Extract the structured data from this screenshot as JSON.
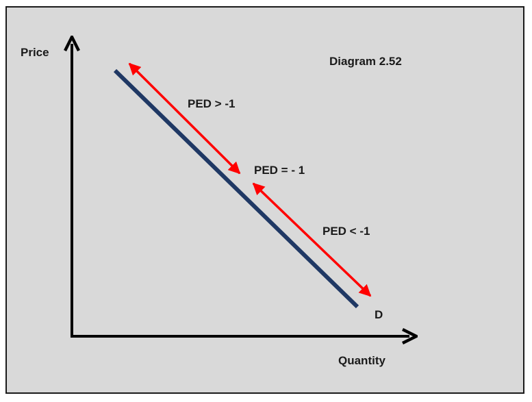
{
  "diagram": {
    "title": "Diagram 2.52",
    "y_axis_label": "Price",
    "x_axis_label": "Quantity",
    "curve_label": "D",
    "segments": {
      "upper": "PED > -1",
      "midpoint": "PED = - 1",
      "lower": "PED < -1"
    },
    "colors": {
      "background": "#d9d9d9",
      "axes": "#000000",
      "demand_curve": "#1f3864",
      "arrows": "#ff0000",
      "text": "#1a1a1a"
    }
  }
}
